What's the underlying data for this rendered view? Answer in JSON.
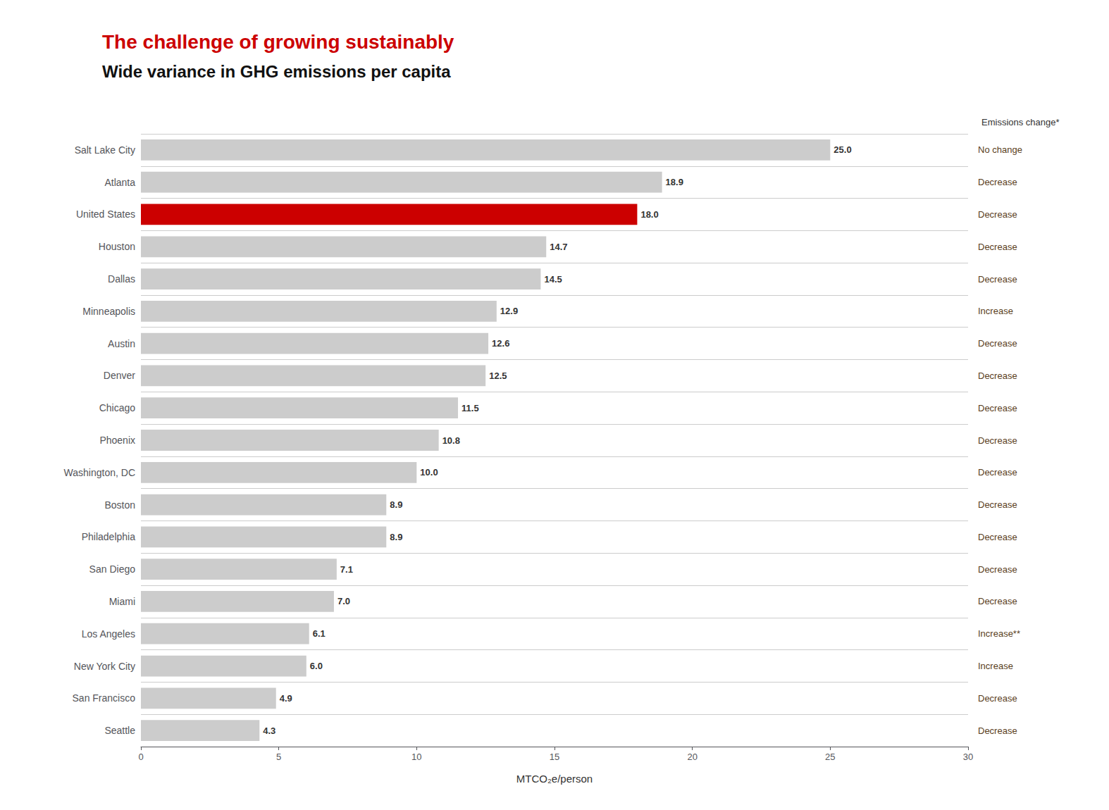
{
  "chart_data": {
    "type": "bar",
    "orientation": "horizontal",
    "title": "The challenge of growing sustainably",
    "subtitle": "Wide variance in GHG emissions per capita",
    "xlabel": "MTCO₂e/person",
    "categories": [
      "Salt Lake City",
      "Atlanta",
      "United States",
      "Houston",
      "Dallas",
      "Minneapolis",
      "Austin",
      "Denver",
      "Chicago",
      "Phoenix",
      "Washington, DC",
      "Boston",
      "Philadelphia",
      "San Diego",
      "Miami",
      "Los Angeles",
      "New York City",
      "San Francisco",
      "Seattle"
    ],
    "values": [
      25.0,
      18.9,
      18.0,
      14.7,
      14.5,
      12.9,
      12.6,
      12.5,
      11.5,
      10.8,
      10.0,
      8.9,
      8.9,
      7.1,
      7.0,
      6.1,
      6.0,
      4.9,
      4.3
    ],
    "value_labels": [
      "25.0",
      "18.9",
      "18.0",
      "14.7",
      "14.5",
      "12.9",
      "12.6",
      "12.5",
      "11.5",
      "10.8",
      "10.0",
      "8.9",
      "8.9",
      "7.1",
      "7.0",
      "6.1",
      "6.0",
      "4.9",
      "4.3"
    ],
    "colors": [
      "#cccccc",
      "#cccccc",
      "#cc0000",
      "#cccccc",
      "#cccccc",
      "#cccccc",
      "#cccccc",
      "#cccccc",
      "#cccccc",
      "#cccccc",
      "#cccccc",
      "#cccccc",
      "#cccccc",
      "#cccccc",
      "#cccccc",
      "#cccccc",
      "#cccccc",
      "#cccccc",
      "#cccccc"
    ],
    "annotation_title": "Emissions change*",
    "annotations": [
      "No change",
      "Decrease",
      "Decrease",
      "Decrease",
      "Decrease",
      "Increase",
      "Decrease",
      "Decrease",
      "Decrease",
      "Decrease",
      "Decrease",
      "Decrease",
      "Decrease",
      "Decrease",
      "Decrease",
      "Increase**",
      "Increase",
      "Decrease",
      "Decrease"
    ],
    "xlim": [
      0,
      30
    ],
    "xticks": [
      0,
      5,
      10,
      15,
      20,
      25,
      30
    ],
    "data_labels": true,
    "grid": true
  }
}
